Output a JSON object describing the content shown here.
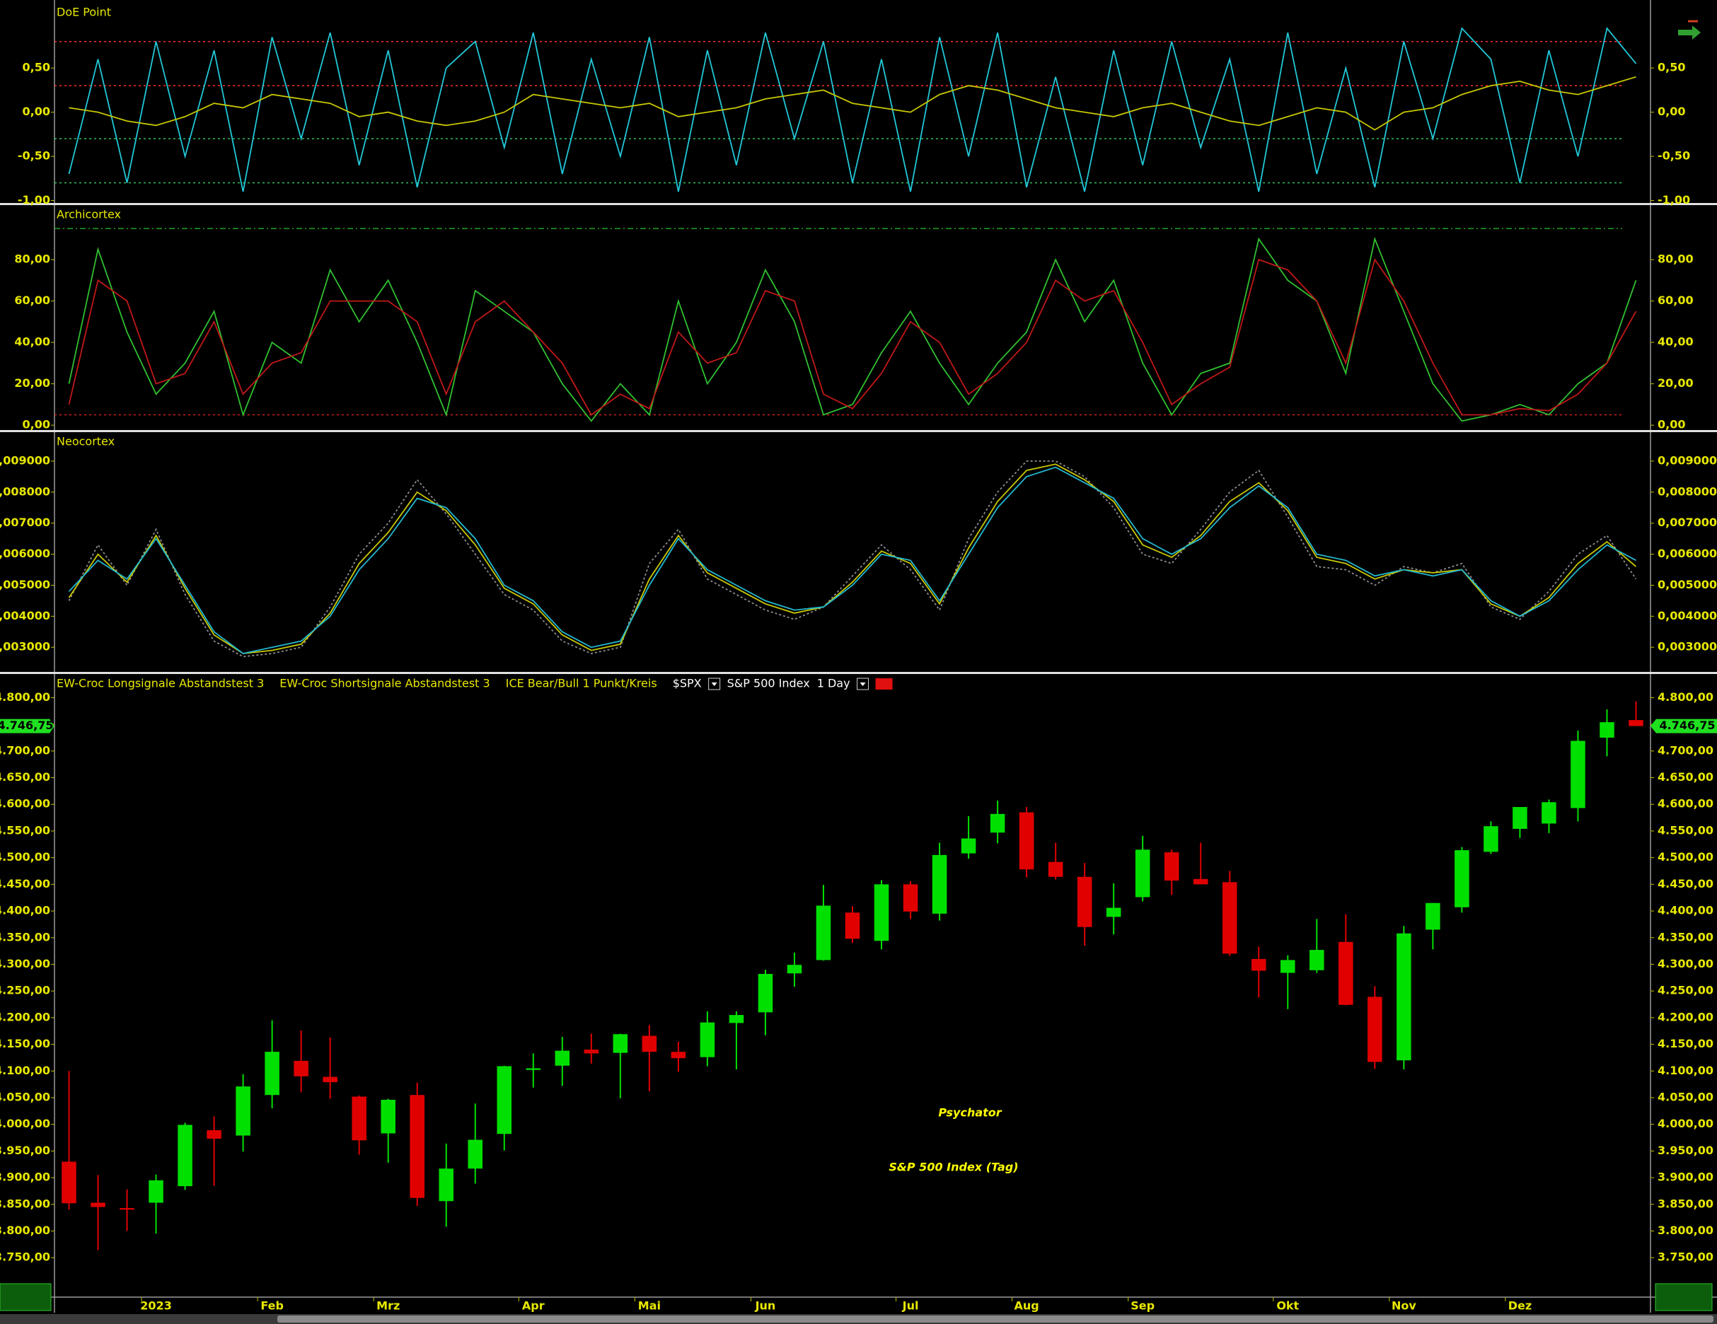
{
  "chart_data": [
    {
      "type": "line",
      "title": "DoE Point",
      "ylim": [
        -1.02,
        1.23
      ],
      "yticks": [
        {
          "value": 0.5,
          "label": "0,50"
        },
        {
          "value": 0,
          "label": "0,00"
        },
        {
          "value": -0.5,
          "label": "-0,50"
        },
        {
          "value": -1,
          "label": "-1,00"
        }
      ],
      "reference_lines": [
        {
          "value": 0.8,
          "color": "#ff3030"
        },
        {
          "value": 0.3,
          "color": "#ff3030"
        },
        {
          "value": -0.3,
          "color": "#30c060"
        },
        {
          "value": -0.8,
          "color": "#30c060"
        }
      ],
      "series": [
        {
          "color": "#22c8d8",
          "style": "solid",
          "values": [
            -0.7,
            0.6,
            -0.8,
            0.8,
            -0.5,
            0.7,
            -0.9,
            0.85,
            -0.3,
            0.9,
            -0.6,
            0.7,
            -0.85,
            0.5,
            0.8,
            -0.4,
            0.9,
            -0.7,
            0.6,
            -0.5,
            0.85,
            -0.9,
            0.7,
            -0.6,
            0.9,
            -0.3,
            0.8,
            -0.8,
            0.6,
            -0.9,
            0.85,
            -0.5,
            0.9,
            -0.85,
            0.4,
            -0.9,
            0.7,
            -0.6,
            0.8,
            -0.4,
            0.6,
            -0.9,
            0.9,
            -0.7,
            0.5,
            -0.85,
            0.8,
            -0.3,
            0.95,
            0.6,
            -0.8,
            0.7,
            -0.5,
            0.95,
            0.55
          ]
        },
        {
          "color": "#c8c800",
          "style": "solid",
          "values": [
            0.05,
            0,
            -0.1,
            -0.15,
            -0.05,
            0.1,
            0.05,
            0.2,
            0.15,
            0.1,
            -0.05,
            0,
            -0.1,
            -0.15,
            -0.1,
            0,
            0.2,
            0.15,
            0.1,
            0.05,
            0.1,
            -0.05,
            0,
            0.05,
            0.15,
            0.2,
            0.25,
            0.1,
            0.05,
            0,
            0.2,
            0.3,
            0.25,
            0.15,
            0.05,
            0,
            -0.05,
            0.05,
            0.1,
            0,
            -0.1,
            -0.15,
            -0.05,
            0.05,
            0,
            -0.2,
            0,
            0.05,
            0.2,
            0.3,
            0.35,
            0.25,
            0.2,
            0.3,
            0.4
          ]
        }
      ]
    },
    {
      "type": "line",
      "title": "Archicortex",
      "ylim": [
        -2,
        106
      ],
      "yticks": [
        {
          "value": 80,
          "label": "80,00"
        },
        {
          "value": 60,
          "label": "60,00"
        },
        {
          "value": 40,
          "label": "40,00"
        },
        {
          "value": 20,
          "label": "20,00"
        },
        {
          "value": 0,
          "label": "0,00"
        }
      ],
      "reference_lines": [
        {
          "value": 95,
          "color": "#20a020"
        },
        {
          "value": 5,
          "color": "#d02020"
        }
      ],
      "series": [
        {
          "color": "#30c030",
          "style": "solid",
          "values": [
            20,
            85,
            45,
            15,
            30,
            55,
            5,
            40,
            30,
            75,
            50,
            70,
            40,
            5,
            65,
            55,
            45,
            20,
            2,
            20,
            5,
            60,
            20,
            40,
            75,
            50,
            5,
            10,
            35,
            55,
            30,
            10,
            30,
            45,
            80,
            50,
            70,
            30,
            5,
            25,
            30,
            90,
            70,
            60,
            25,
            90,
            55,
            20,
            2,
            5,
            10,
            5,
            20,
            30,
            70
          ]
        },
        {
          "color": "#c01818",
          "style": "solid",
          "values": [
            10,
            70,
            60,
            20,
            25,
            50,
            15,
            30,
            35,
            60,
            60,
            60,
            50,
            15,
            50,
            60,
            45,
            30,
            5,
            15,
            8,
            45,
            30,
            35,
            65,
            60,
            15,
            8,
            25,
            50,
            40,
            15,
            25,
            40,
            70,
            60,
            65,
            40,
            10,
            20,
            28,
            80,
            75,
            60,
            30,
            80,
            60,
            30,
            5,
            5,
            8,
            7,
            15,
            30,
            55
          ]
        }
      ]
    },
    {
      "type": "line",
      "title": "Neocortex",
      "ylim": [
        0.00223,
        0.00991
      ],
      "yticks": [
        {
          "value": 0.009,
          "label": "0,009000"
        },
        {
          "value": 0.008,
          "label": "0,008000"
        },
        {
          "value": 0.007,
          "label": "0,007000"
        },
        {
          "value": 0.006,
          "label": "0,006000"
        },
        {
          "value": 0.005,
          "label": "0,005000"
        },
        {
          "value": 0.004,
          "label": "0,004000"
        },
        {
          "value": 0.003,
          "label": "0,003000"
        }
      ],
      "series": [
        {
          "color": "#8c8c8c",
          "style": "dotted",
          "values": [
            0.0045,
            0.0063,
            0.005,
            0.0068,
            0.0047,
            0.0032,
            0.0027,
            0.0028,
            0.003,
            0.0043,
            0.006,
            0.007,
            0.0084,
            0.0073,
            0.006,
            0.0047,
            0.0042,
            0.0032,
            0.0028,
            0.003,
            0.0057,
            0.0068,
            0.0052,
            0.0047,
            0.0042,
            0.0039,
            0.0043,
            0.0053,
            0.0063,
            0.0055,
            0.0042,
            0.0065,
            0.008,
            0.009,
            0.009,
            0.0085,
            0.0075,
            0.006,
            0.0057,
            0.0068,
            0.008,
            0.0087,
            0.0072,
            0.0056,
            0.0055,
            0.005,
            0.0056,
            0.0054,
            0.0057,
            0.0043,
            0.0039,
            0.0048,
            0.006,
            0.0066,
            0.0052
          ]
        },
        {
          "color": "#c8c800",
          "style": "solid",
          "values": [
            0.0046,
            0.006,
            0.0051,
            0.0066,
            0.0049,
            0.0034,
            0.0028,
            0.0029,
            0.0031,
            0.0041,
            0.0057,
            0.0067,
            0.008,
            0.0074,
            0.0063,
            0.0049,
            0.0044,
            0.0034,
            0.0029,
            0.0031,
            0.0052,
            0.0066,
            0.0054,
            0.0049,
            0.0044,
            0.0041,
            0.0043,
            0.0051,
            0.0061,
            0.0057,
            0.0044,
            0.0062,
            0.0077,
            0.0087,
            0.0089,
            0.0084,
            0.0077,
            0.0063,
            0.0059,
            0.0066,
            0.0077,
            0.0083,
            0.0074,
            0.0059,
            0.0057,
            0.0052,
            0.0055,
            0.0054,
            0.0055,
            0.0044,
            0.004,
            0.0046,
            0.0057,
            0.0064,
            0.0056
          ]
        },
        {
          "color": "#22b8d0",
          "style": "solid",
          "values": [
            0.0048,
            0.0058,
            0.0052,
            0.0065,
            0.005,
            0.0035,
            0.0028,
            0.003,
            0.0032,
            0.004,
            0.0055,
            0.0065,
            0.0078,
            0.0075,
            0.0065,
            0.005,
            0.0045,
            0.0035,
            0.003,
            0.0032,
            0.005,
            0.0065,
            0.0055,
            0.005,
            0.0045,
            0.0042,
            0.0043,
            0.005,
            0.006,
            0.0058,
            0.0045,
            0.006,
            0.0075,
            0.0085,
            0.0088,
            0.0083,
            0.0078,
            0.0065,
            0.006,
            0.0065,
            0.0075,
            0.0082,
            0.0075,
            0.006,
            0.0058,
            0.0053,
            0.0055,
            0.0053,
            0.0055,
            0.0045,
            0.004,
            0.0045,
            0.0055,
            0.0063,
            0.0058
          ]
        }
      ]
    },
    {
      "type": "candlestick",
      "title": "Psychator",
      "subtitle": "S&P 500 Index (Tag)",
      "legend": [
        "EW-Croc Longsignale Abstandstest 3",
        "EW-Croc Shortsignale Abstandstest 3",
        "ICE Bear/Bull 1 Punkt/Kreis"
      ],
      "symbol": "$SPX",
      "instrument": "S&P 500 Index",
      "interval": "1 Day",
      "up_color": "#00e000",
      "down_color": "#e00000",
      "categories": [
        null,
        null,
        null,
        "2023",
        null,
        null,
        null,
        "Feb",
        null,
        null,
        null,
        "Mrz",
        null,
        null,
        null,
        null,
        "Apr",
        null,
        null,
        null,
        "Mai",
        null,
        null,
        null,
        "Jun",
        null,
        null,
        null,
        null,
        "Jul",
        null,
        null,
        null,
        "Aug",
        null,
        null,
        null,
        "Sep",
        null,
        null,
        null,
        null,
        "Okt",
        null,
        null,
        null,
        "Nov",
        null,
        null,
        null,
        "Dez",
        null,
        null,
        null,
        null
      ],
      "open": [
        3930,
        3853,
        3843,
        3853,
        3884,
        3989,
        3979,
        4055,
        4119,
        4089,
        4052,
        3983,
        4055,
        3856,
        3917,
        3982,
        4102,
        4110,
        4140,
        4134,
        4166,
        4136,
        4126,
        4190,
        4210,
        4283,
        4308,
        4397,
        4344,
        4450,
        4395,
        4508,
        4547,
        4585,
        4492,
        4464,
        4389,
        4426,
        4510,
        4460,
        4454,
        4310,
        4284,
        4289,
        4342,
        4239,
        4120,
        4365,
        4407,
        4511,
        4554,
        4564,
        4593,
        4725,
        4758
      ],
      "high": [
        4100,
        3905,
        3878,
        3906,
        4003,
        4015,
        4094,
        4195,
        4176,
        4163,
        4054,
        4048,
        4078,
        3964,
        4039,
        4110,
        4133,
        4164,
        4170,
        4170,
        4186,
        4155,
        4212,
        4212,
        4290,
        4322,
        4449,
        4409,
        4458,
        4456,
        4528,
        4578,
        4607,
        4595,
        4528,
        4490,
        4452,
        4541,
        4515,
        4528,
        4475,
        4333,
        4317,
        4385,
        4394,
        4259,
        4372,
        4415,
        4520,
        4568,
        4595,
        4609,
        4738,
        4778,
        4793
      ],
      "low": [
        3840,
        3764,
        3800,
        3795,
        3877,
        3885,
        3949,
        4030,
        4060,
        4048,
        3943,
        3928,
        3847,
        3808,
        3889,
        3951,
        4069,
        4072,
        4114,
        4049,
        4062,
        4099,
        4109,
        4103,
        4167,
        4258,
        4307,
        4340,
        4328,
        4385,
        4382,
        4498,
        4527,
        4463,
        4459,
        4335,
        4356,
        4418,
        4430,
        4450,
        4316,
        4238,
        4216,
        4284,
        4223,
        4104,
        4103,
        4328,
        4397,
        4507,
        4537,
        4546,
        4568,
        4690,
        4751
      ],
      "close": [
        3852,
        3845,
        3840,
        3895,
        3999,
        3973,
        4071,
        4136,
        4090,
        4079,
        3970,
        4046,
        3862,
        3917,
        3971,
        4109,
        4105,
        4138,
        4133,
        4169,
        4136,
        4124,
        4191,
        4205,
        4282,
        4299,
        4410,
        4348,
        4450,
        4399,
        4505,
        4536,
        4582,
        4478,
        4464,
        4370,
        4406,
        4515,
        4457,
        4450,
        4320,
        4288,
        4308,
        4327,
        4224,
        4117,
        4358,
        4415,
        4514,
        4559,
        4595,
        4604,
        4719,
        4754,
        4746.75
      ],
      "last_value": {
        "value": 4746.75,
        "label": "4.746,75"
      },
      "ylim": [
        3676,
        4843
      ],
      "yticks": [
        {
          "value": 4800,
          "label": "4.800,00"
        },
        {
          "value": 4750,
          "label": "4.750,00"
        },
        {
          "value": 4700,
          "label": "4.700,00"
        },
        {
          "value": 4650,
          "label": "4.650,00"
        },
        {
          "value": 4600,
          "label": "4.600,00"
        },
        {
          "value": 4550,
          "label": "4.550,00"
        },
        {
          "value": 4500,
          "label": "4.500,00"
        },
        {
          "value": 4450,
          "label": "4.450,00"
        },
        {
          "value": 4400,
          "label": "4.400,00"
        },
        {
          "value": 4350,
          "label": "4.350,00"
        },
        {
          "value": 4300,
          "label": "4.300,00"
        },
        {
          "value": 4250,
          "label": "4.250,00"
        },
        {
          "value": 4200,
          "label": "4.200,00"
        },
        {
          "value": 4150,
          "label": "4.150,00"
        },
        {
          "value": 4100,
          "label": "4.100,00"
        },
        {
          "value": 4050,
          "label": "4.050,00"
        },
        {
          "value": 4000,
          "label": "4.000,00"
        },
        {
          "value": 3950,
          "label": "3.950,00"
        },
        {
          "value": 3900,
          "label": "3.900,00"
        },
        {
          "value": 3850,
          "label": "3.850,00"
        },
        {
          "value": 3800,
          "label": "3.800,00"
        },
        {
          "value": 3750,
          "label": "3.750,00"
        }
      ]
    }
  ]
}
